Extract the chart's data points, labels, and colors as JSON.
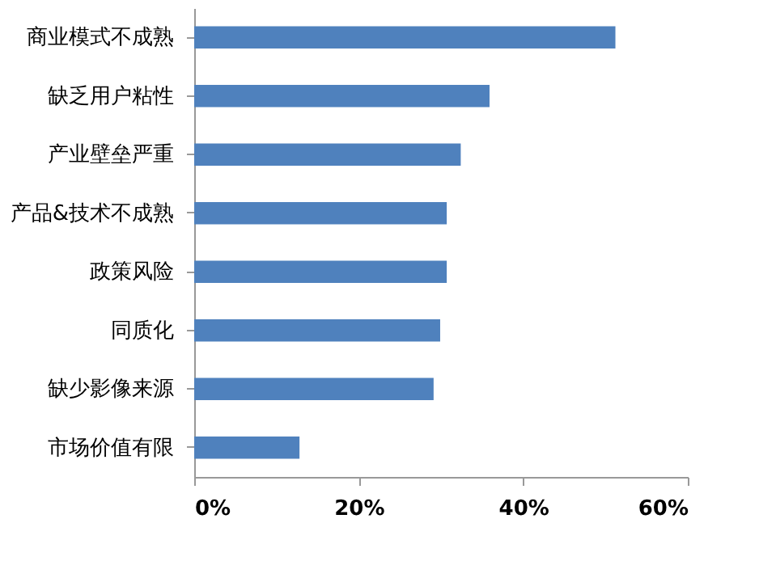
{
  "chart_data": {
    "type": "bar",
    "orientation": "horizontal",
    "categories": [
      "商业模式不成熟",
      "缺乏用户粘性",
      "产业壁垒严重",
      "产品&技术不成熟",
      "政策风险",
      "同质化",
      "缺少影像来源",
      "市场价值有限"
    ],
    "values": [
      51.2,
      35.9,
      32.4,
      30.7,
      30.7,
      29.9,
      29.1,
      12.8
    ],
    "color": "#4f81bd",
    "xlim": [
      0,
      60
    ],
    "xticks": [
      {
        "value": 0,
        "label": "0%"
      },
      {
        "value": 20,
        "label": "20%"
      },
      {
        "value": 40,
        "label": "40%"
      },
      {
        "value": 60,
        "label": "60%"
      }
    ],
    "grid": false
  }
}
